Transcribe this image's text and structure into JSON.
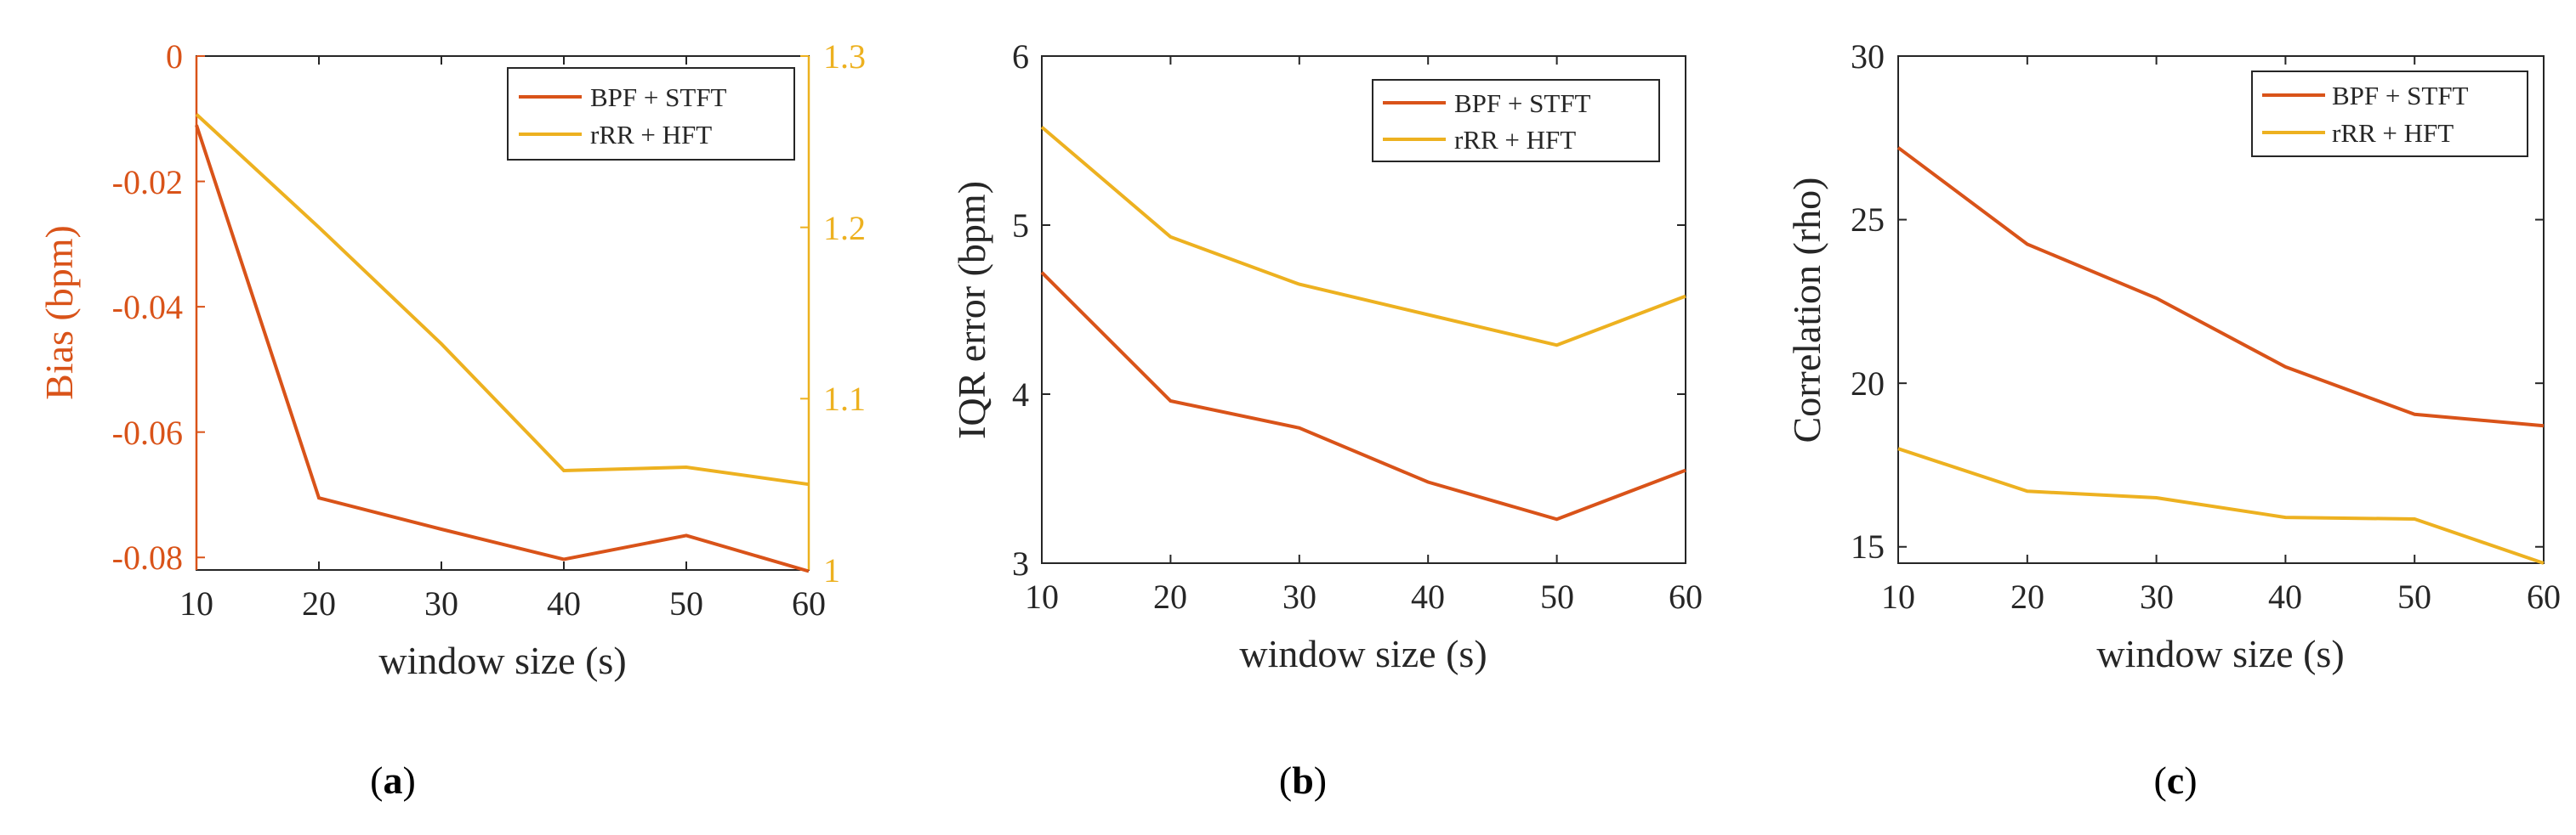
{
  "colors": {
    "series1": "#d95319",
    "series2": "#edb120",
    "axis": "#262626",
    "background": "#ffffff"
  },
  "chart_data": [
    {
      "type": "line",
      "panel_label": {
        "open": "(",
        "letter": "a",
        "close": ")"
      },
      "xlabel": "window size (s)",
      "ylabel": "Bias (bpm)",
      "ylabel_right": "",
      "xlim": [
        10,
        60
      ],
      "xticks": [
        "10",
        "20",
        "30",
        "40",
        "50",
        "60"
      ],
      "ylim": [
        -0.082,
        0
      ],
      "yticks": [
        "0",
        "-0.02",
        "-0.04",
        "-0.06",
        "-0.08"
      ],
      "ylim_right": [
        1.0,
        1.3
      ],
      "yticks_right": [
        "1.3",
        "1.2",
        "1.1",
        "1"
      ],
      "x": [
        10,
        20,
        30,
        40,
        50,
        60
      ],
      "series": [
        {
          "name": "BPF + STFT",
          "color": "#d95319",
          "axis": "left",
          "values": [
            -0.011,
            -0.0705,
            -0.0755,
            -0.0803,
            -0.0765,
            -0.0822
          ]
        },
        {
          "name": "rRR + HFT",
          "color": "#edb120",
          "axis": "right",
          "values": [
            1.266,
            1.2,
            1.132,
            1.058,
            1.06,
            1.05
          ]
        }
      ]
    },
    {
      "type": "line",
      "panel_label": {
        "open": "(",
        "letter": "b",
        "close": ")"
      },
      "xlabel": "window size (s)",
      "ylabel": "IQR error (bpm)",
      "xlim": [
        10,
        60
      ],
      "xticks": [
        "10",
        "20",
        "30",
        "40",
        "50",
        "60"
      ],
      "ylim": [
        3,
        6
      ],
      "yticks": [
        "6",
        "5",
        "4",
        "3"
      ],
      "x": [
        10,
        20,
        30,
        40,
        50,
        60
      ],
      "series": [
        {
          "name": "BPF + STFT",
          "color": "#d95319",
          "values": [
            4.72,
            3.96,
            3.8,
            3.48,
            3.26,
            3.55
          ]
        },
        {
          "name": "rRR + HFT",
          "color": "#edb120",
          "values": [
            5.58,
            4.93,
            4.65,
            4.47,
            4.29,
            4.58
          ]
        }
      ]
    },
    {
      "type": "line",
      "panel_label": {
        "open": "(",
        "letter": "c",
        "close": ")"
      },
      "xlabel": "window size (s)",
      "ylabel": "Correlation (rho)",
      "xlim": [
        10,
        60
      ],
      "xticks": [
        "10",
        "20",
        "30",
        "40",
        "50",
        "60"
      ],
      "ylim": [
        14.5,
        30
      ],
      "yticks": [
        "30",
        "25",
        "20",
        "15"
      ],
      "x": [
        10,
        20,
        30,
        40,
        50,
        60
      ],
      "series": [
        {
          "name": "BPF + STFT",
          "color": "#d95319",
          "values": [
            27.2,
            24.25,
            22.6,
            20.5,
            19.05,
            18.7
          ]
        },
        {
          "name": "rRR + HFT",
          "color": "#edb120",
          "values": [
            18.0,
            16.7,
            16.5,
            15.9,
            15.85,
            14.5
          ]
        }
      ]
    }
  ]
}
